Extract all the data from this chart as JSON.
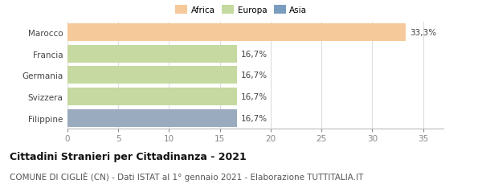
{
  "categories": [
    "Marocco",
    "Francia",
    "Germania",
    "Svizzera",
    "Filippine"
  ],
  "values": [
    33.3,
    16.7,
    16.7,
    16.7,
    16.7
  ],
  "labels": [
    "33,3%",
    "16,7%",
    "16,7%",
    "16,7%",
    "16,7%"
  ],
  "colors": [
    "#f5c99a",
    "#c5d9a0",
    "#c5d9a0",
    "#c5d9a0",
    "#9aabbf"
  ],
  "legend": [
    {
      "label": "Africa",
      "color": "#f5c99a"
    },
    {
      "label": "Europa",
      "color": "#c5d9a0"
    },
    {
      "label": "Asia",
      "color": "#7a9dbf"
    }
  ],
  "xlim": [
    0,
    37
  ],
  "xticks": [
    0,
    5,
    10,
    15,
    20,
    25,
    30,
    35
  ],
  "title_bold": "Cittadini Stranieri per Cittadinanza - 2021",
  "subtitle": "COMUNE DI CIGLIÈ (CN) - Dati ISTAT al 1° gennaio 2021 - Elaborazione TUTTITALIA.IT",
  "background_color": "#ffffff",
  "grid_color": "#dddddd",
  "bar_height": 0.82,
  "label_fontsize": 7.5,
  "tick_fontsize": 7.5,
  "title_fontsize": 9,
  "subtitle_fontsize": 7.5
}
